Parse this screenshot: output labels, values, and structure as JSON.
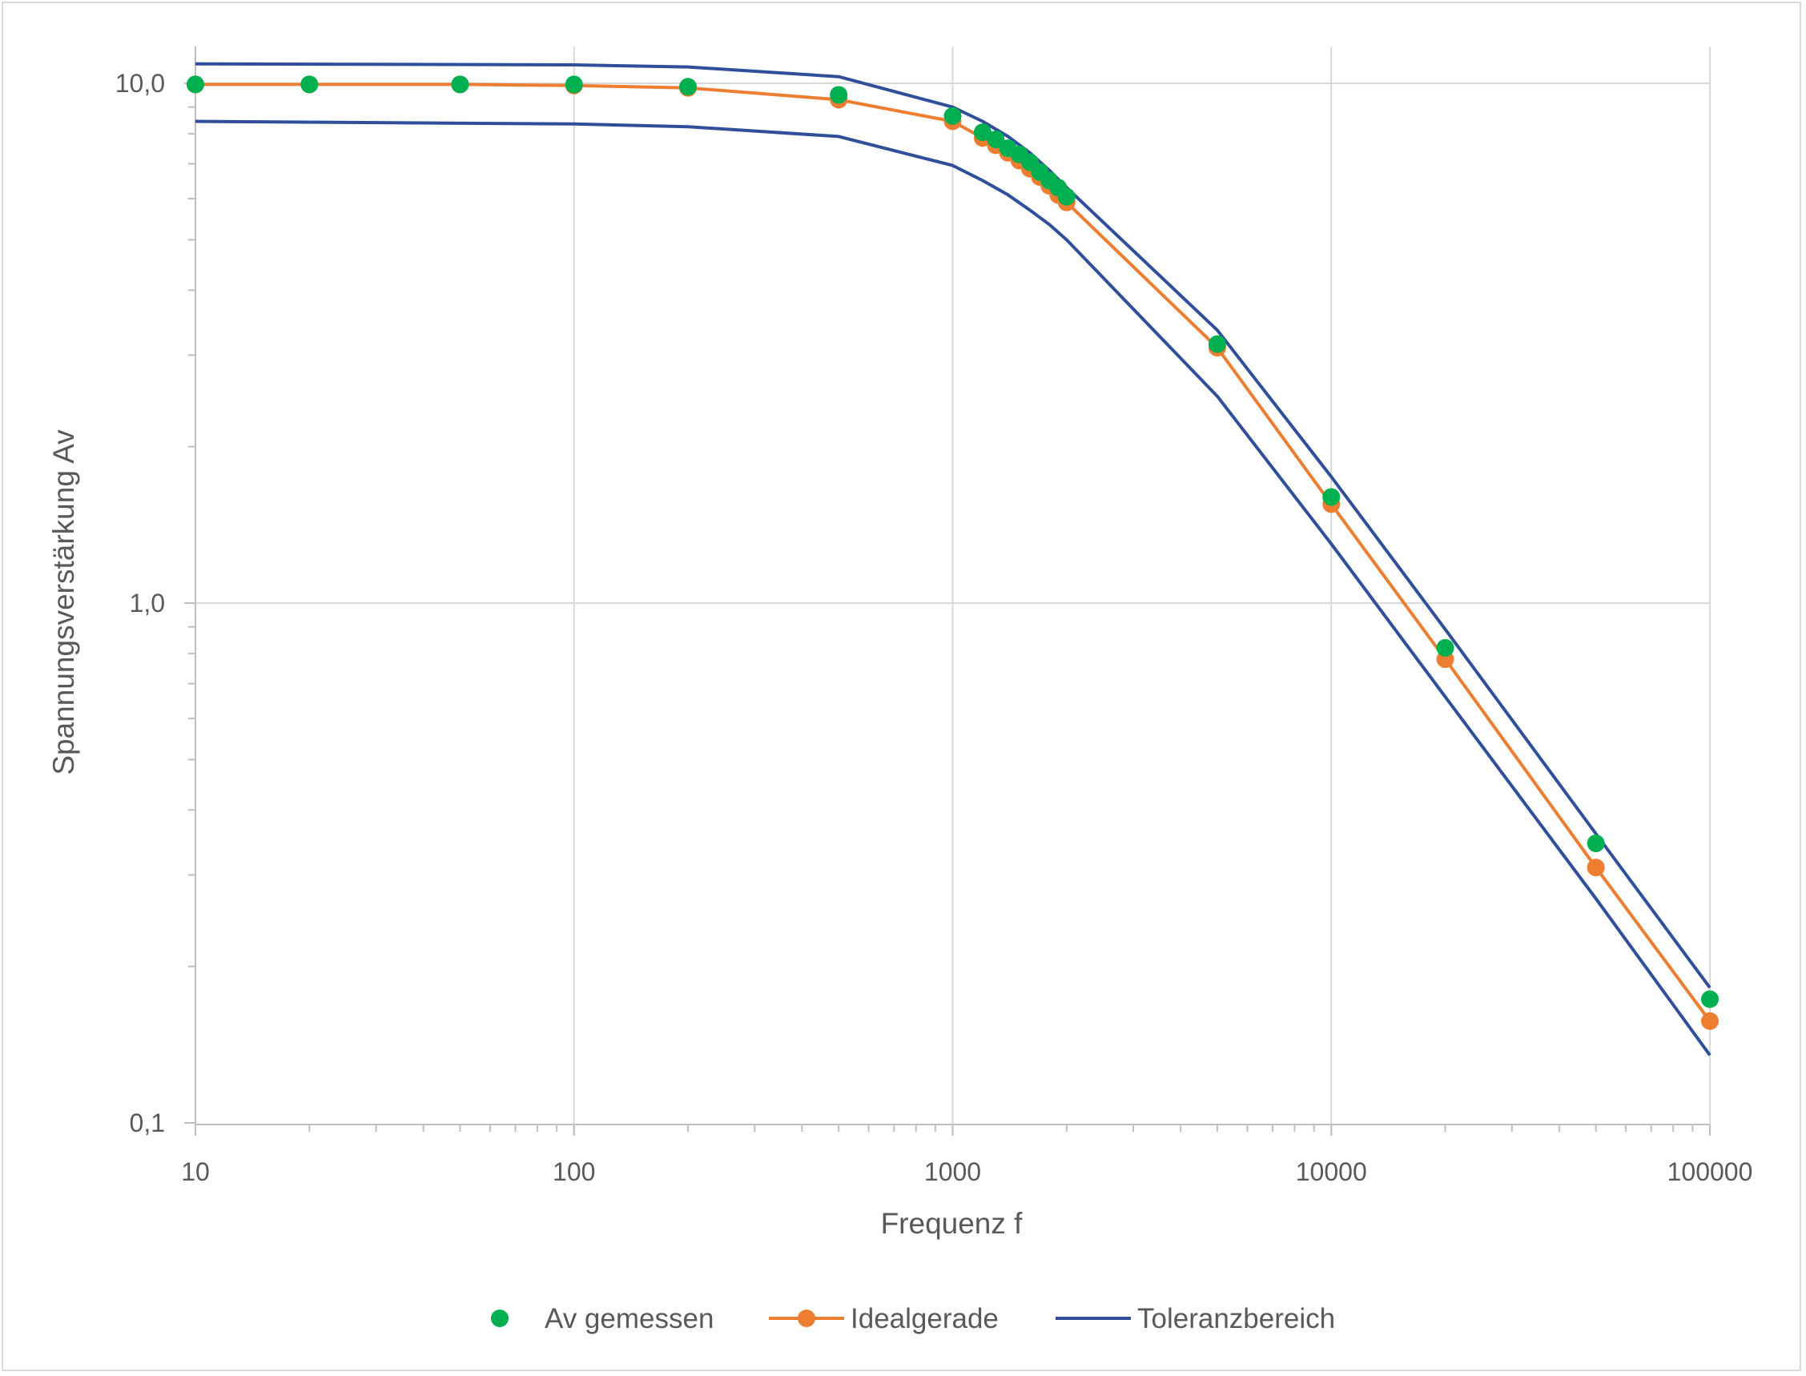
{
  "chart_data": {
    "type": "line",
    "title": "",
    "xlabel": "Frequenz f",
    "ylabel": "Spannungsverstärkung Av",
    "x_scale": "log",
    "y_scale": "log",
    "xlim": [
      10,
      100000
    ],
    "ylim": [
      0.1,
      15
    ],
    "x_ticks": [
      10,
      100,
      1000,
      10000,
      100000
    ],
    "x_tick_labels": [
      "10",
      "100",
      "1000",
      "10000",
      "100000"
    ],
    "y_ticks": [
      0.1,
      1,
      10
    ],
    "y_tick_labels": [
      "0,1",
      "1,0",
      "10,0"
    ],
    "grid": true,
    "legend_position": "bottom",
    "series": [
      {
        "name": "Toleranzbereich",
        "kind": "line",
        "color": "#2f4f9a",
        "x": [
          10,
          100,
          200,
          500,
          1000,
          1200,
          1400,
          1600,
          1800,
          2000,
          5000,
          10000,
          20000,
          50000,
          100000
        ],
        "y": [
          10.9,
          10.85,
          10.75,
          10.3,
          9.0,
          8.45,
          7.9,
          7.35,
          6.8,
          6.3,
          3.35,
          1.75,
          0.89,
          0.36,
          0.182
        ]
      },
      {
        "name": "",
        "kind": "line",
        "color": "#2f4f9a",
        "x": [
          10,
          100,
          200,
          500,
          1000,
          1200,
          1400,
          1600,
          1800,
          2000,
          5000,
          10000,
          20000,
          50000,
          100000
        ],
        "y": [
          8.45,
          8.35,
          8.25,
          7.9,
          6.95,
          6.5,
          6.1,
          5.7,
          5.35,
          5.0,
          2.5,
          1.3,
          0.66,
          0.27,
          0.135
        ]
      },
      {
        "name": "Idealgerade",
        "kind": "line-marker",
        "color": "#ed7d31",
        "x": [
          10,
          20,
          50,
          100,
          200,
          500,
          1000,
          1200,
          1300,
          1400,
          1500,
          1600,
          1700,
          1800,
          1900,
          2000,
          5000,
          10000,
          20000,
          50000,
          100000
        ],
        "y": [
          9.95,
          9.95,
          9.95,
          9.9,
          9.8,
          9.3,
          8.45,
          7.85,
          7.6,
          7.35,
          7.1,
          6.85,
          6.6,
          6.35,
          6.1,
          5.9,
          3.1,
          1.55,
          0.78,
          0.31,
          0.157
        ]
      },
      {
        "name": "Av gemessen",
        "kind": "marker",
        "color": "#00b050",
        "x": [
          10,
          20,
          50,
          100,
          200,
          500,
          1000,
          1200,
          1300,
          1400,
          1500,
          1600,
          1700,
          1800,
          1900,
          2000,
          5000,
          10000,
          20000,
          50000,
          100000
        ],
        "y": [
          9.95,
          9.95,
          9.95,
          9.95,
          9.85,
          9.5,
          8.65,
          8.05,
          7.8,
          7.5,
          7.3,
          7.05,
          6.75,
          6.5,
          6.3,
          6.05,
          3.15,
          1.6,
          0.82,
          0.345,
          0.173
        ]
      }
    ],
    "legend": [
      {
        "label": "Av gemessen",
        "kind": "marker",
        "color": "#00b050"
      },
      {
        "label": "Idealgerade",
        "kind": "line-marker",
        "color": "#ed7d31"
      },
      {
        "label": "Toleranzbereich",
        "kind": "line",
        "color": "#2f4f9a"
      }
    ],
    "colors": {
      "grid": "#d9d9d9",
      "axis": "#bfbfbf",
      "text": "#595959"
    }
  }
}
